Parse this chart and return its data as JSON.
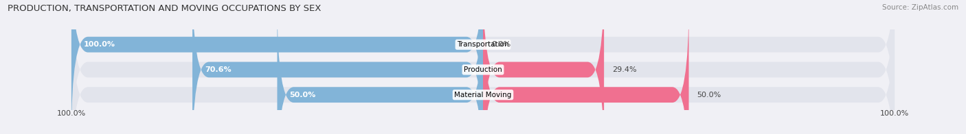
{
  "title": "PRODUCTION, TRANSPORTATION AND MOVING OCCUPATIONS BY SEX",
  "source": "Source: ZipAtlas.com",
  "categories": [
    "Transportation",
    "Production",
    "Material Moving"
  ],
  "male_values": [
    100.0,
    70.6,
    50.0
  ],
  "female_values": [
    0.0,
    29.4,
    50.0
  ],
  "male_color": "#82b4d8",
  "female_color": "#f07090",
  "bar_bg_color": "#e2e4ec",
  "title_fontsize": 9.5,
  "source_fontsize": 7.5,
  "value_fontsize": 8,
  "category_fontsize": 7.5,
  "bar_height": 0.62,
  "background_color": "#f0f0f5"
}
